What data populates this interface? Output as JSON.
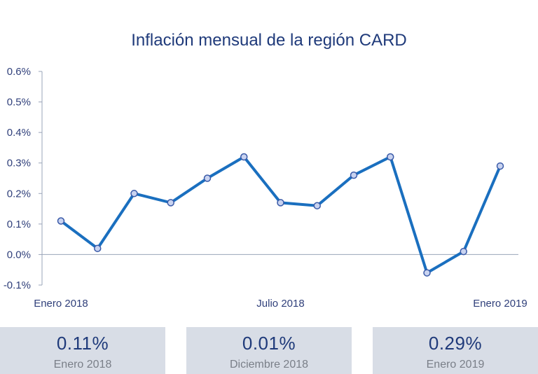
{
  "chart_data": {
    "type": "line",
    "title": "Inflación mensual de la región CARD",
    "xlabel": "",
    "ylabel": "",
    "x_tick_labels": [
      {
        "index": 0,
        "label": "Enero 2018"
      },
      {
        "index": 6,
        "label": "Julio 2018"
      },
      {
        "index": 12,
        "label": "Enero 2019"
      }
    ],
    "y_ticks": [
      "0.6%",
      "0.5%",
      "0.4%",
      "0.3%",
      "0.2%",
      "0.1%",
      "0.0%",
      "-0.1%"
    ],
    "y_tick_values": [
      0.6,
      0.5,
      0.4,
      0.3,
      0.2,
      0.1,
      0.0,
      -0.1
    ],
    "ylim": [
      -0.1,
      0.6
    ],
    "grid": false,
    "series": [
      {
        "values": [
          0.11,
          0.02,
          0.2,
          0.17,
          0.25,
          0.32,
          0.17,
          0.16,
          0.26,
          0.32,
          -0.06,
          0.01,
          0.29
        ],
        "color": "#1a6fbf"
      }
    ]
  },
  "stats": [
    {
      "value": "0.11%",
      "label": "Enero 2018"
    },
    {
      "value": "0.01%",
      "label": "Diciembre 2018"
    },
    {
      "value": "0.29%",
      "label": "Enero 2019"
    }
  ]
}
